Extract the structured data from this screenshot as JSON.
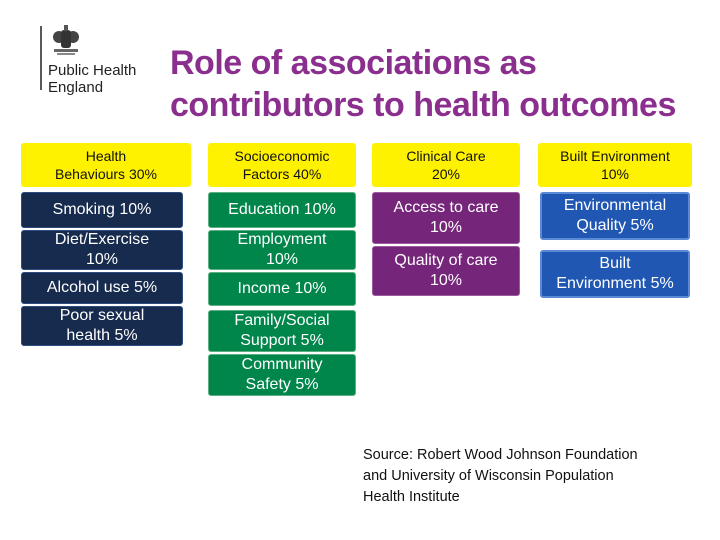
{
  "logo": {
    "line1": "Public Health",
    "line2": "England",
    "icon": "royal-crest-icon"
  },
  "title": {
    "line1": "Role of associations as",
    "line2": "contributors to health outcomes"
  },
  "columns": [
    {
      "header": [
        "Health",
        "Behaviours 30%"
      ],
      "items": [
        [
          "Smoking 10%"
        ],
        [
          "Diet/Exercise",
          "10%"
        ],
        [
          "Alcohol use 5%"
        ],
        [
          "Poor sexual",
          "health 5%"
        ]
      ]
    },
    {
      "header": [
        "Socioeconomic",
        "Factors 40%"
      ],
      "items": [
        [
          "Education 10%"
        ],
        [
          "Employment",
          "10%"
        ],
        [
          "Income 10%"
        ],
        [
          "Family/Social",
          "Support 5%"
        ],
        [
          "Community",
          "Safety 5%"
        ]
      ]
    },
    {
      "header": [
        "Clinical Care",
        "20%"
      ],
      "items": [
        [
          "Access to care",
          "10%"
        ],
        [
          "Quality of care",
          "10%"
        ]
      ]
    },
    {
      "header": [
        "Built Environment",
        "10%"
      ],
      "items": [
        [
          "Environmental",
          "Quality 5%"
        ],
        [
          "Built",
          "Environment 5%"
        ]
      ]
    }
  ],
  "source": {
    "line1": "Source: Robert Wood Johnson Foundation",
    "line2": "and University of Wisconsin Population",
    "line3": "Health Institute"
  },
  "colors": {
    "title": "#8b2f8e",
    "header": "#fff200",
    "behaviours": "#162b4d",
    "socioeconomic": "#00864a",
    "clinical": "#76267a",
    "built": "#1f57b3"
  }
}
